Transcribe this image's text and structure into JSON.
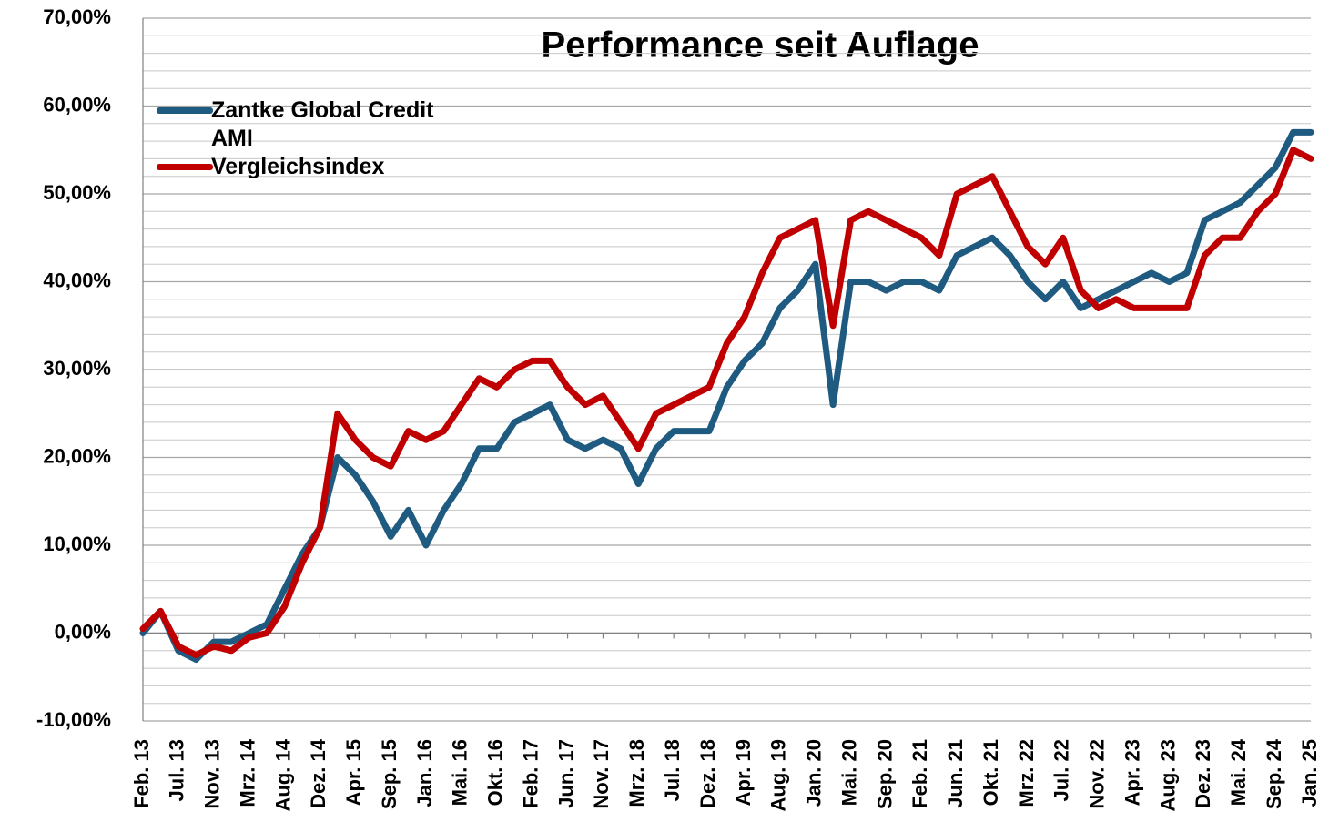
{
  "chart_data": {
    "type": "line",
    "title": "Performance seit Auflage",
    "categories": [
      "Feb. 13",
      null,
      "Jul. 13",
      null,
      "Nov. 13",
      null,
      "Mrz. 14",
      null,
      "Aug. 14",
      null,
      "Dez. 14",
      null,
      "Apr. 15",
      null,
      "Sep. 15",
      null,
      "Jan. 16",
      null,
      "Mai. 16",
      null,
      "Okt. 16",
      null,
      "Feb. 17",
      null,
      "Jun. 17",
      null,
      "Nov. 17",
      null,
      "Mrz. 18",
      null,
      "Jul. 18",
      null,
      "Dez. 18",
      null,
      "Apr. 19",
      null,
      "Aug. 19",
      null,
      "Jan. 20",
      null,
      "Mai. 20",
      null,
      "Sep. 20",
      null,
      "Feb. 21",
      null,
      "Jun. 21",
      null,
      "Okt. 21",
      null,
      "Mrz. 22",
      null,
      "Jul. 22",
      null,
      "Nov. 22",
      null,
      "Apr. 23",
      null,
      "Aug. 23",
      null,
      "Dez. 23",
      null,
      "Mai. 24",
      null,
      "Sep. 24",
      null,
      "Jan. 25"
    ],
    "series": [
      {
        "name": "Zantke Global Credit AMI",
        "color": "#1f5a80",
        "values": [
          0,
          2.5,
          -2,
          -3,
          -1,
          -1,
          0,
          1,
          5,
          9,
          12,
          20,
          18,
          15,
          11,
          14,
          10,
          14,
          17,
          21,
          21,
          24,
          25,
          26,
          22,
          21,
          22,
          21,
          17,
          21,
          23,
          23,
          23,
          28,
          31,
          33,
          37,
          39,
          42,
          26,
          40,
          40,
          39,
          40,
          40,
          39,
          43,
          44,
          45,
          43,
          40,
          38,
          40,
          37,
          38,
          39,
          40,
          41,
          40,
          41,
          47,
          48,
          49,
          51,
          53,
          57,
          57
        ]
      },
      {
        "name": "Vergleichsindex",
        "color": "#c00000",
        "values": [
          0.5,
          2.5,
          -1.5,
          -2.5,
          -1.5,
          -2,
          -0.5,
          0,
          3,
          8,
          12,
          25,
          22,
          20,
          19,
          23,
          22,
          23,
          26,
          29,
          28,
          30,
          31,
          31,
          28,
          26,
          27,
          24,
          21,
          25,
          26,
          27,
          28,
          33,
          36,
          41,
          45,
          46,
          47,
          35,
          47,
          48,
          47,
          46,
          45,
          43,
          50,
          51,
          52,
          48,
          44,
          42,
          45,
          39,
          37,
          38,
          37,
          37,
          37,
          37,
          43,
          45,
          45,
          48,
          50,
          55,
          54
        ]
      }
    ],
    "ylim": [
      -10,
      70
    ],
    "yticks": [
      {
        "value": -10,
        "label": "-10,00%"
      },
      {
        "value": 0,
        "label": "0,00%"
      },
      {
        "value": 10,
        "label": "10,00%"
      },
      {
        "value": 20,
        "label": "20,00%"
      },
      {
        "value": 30,
        "label": "30,00%"
      },
      {
        "value": 40,
        "label": "40,00%"
      },
      {
        "value": 50,
        "label": "50,00%"
      },
      {
        "value": 60,
        "label": "60,00%"
      },
      {
        "value": 70,
        "label": "70,00%"
      }
    ],
    "minor_yticks": [
      -8,
      -6,
      -4,
      -2,
      2,
      4,
      6,
      8,
      12,
      14,
      16,
      18,
      22,
      24,
      26,
      28,
      32,
      34,
      36,
      38,
      42,
      44,
      46,
      48,
      52,
      54,
      56,
      58,
      62,
      64,
      66,
      68
    ],
    "grid": true,
    "legend": "upper left"
  }
}
